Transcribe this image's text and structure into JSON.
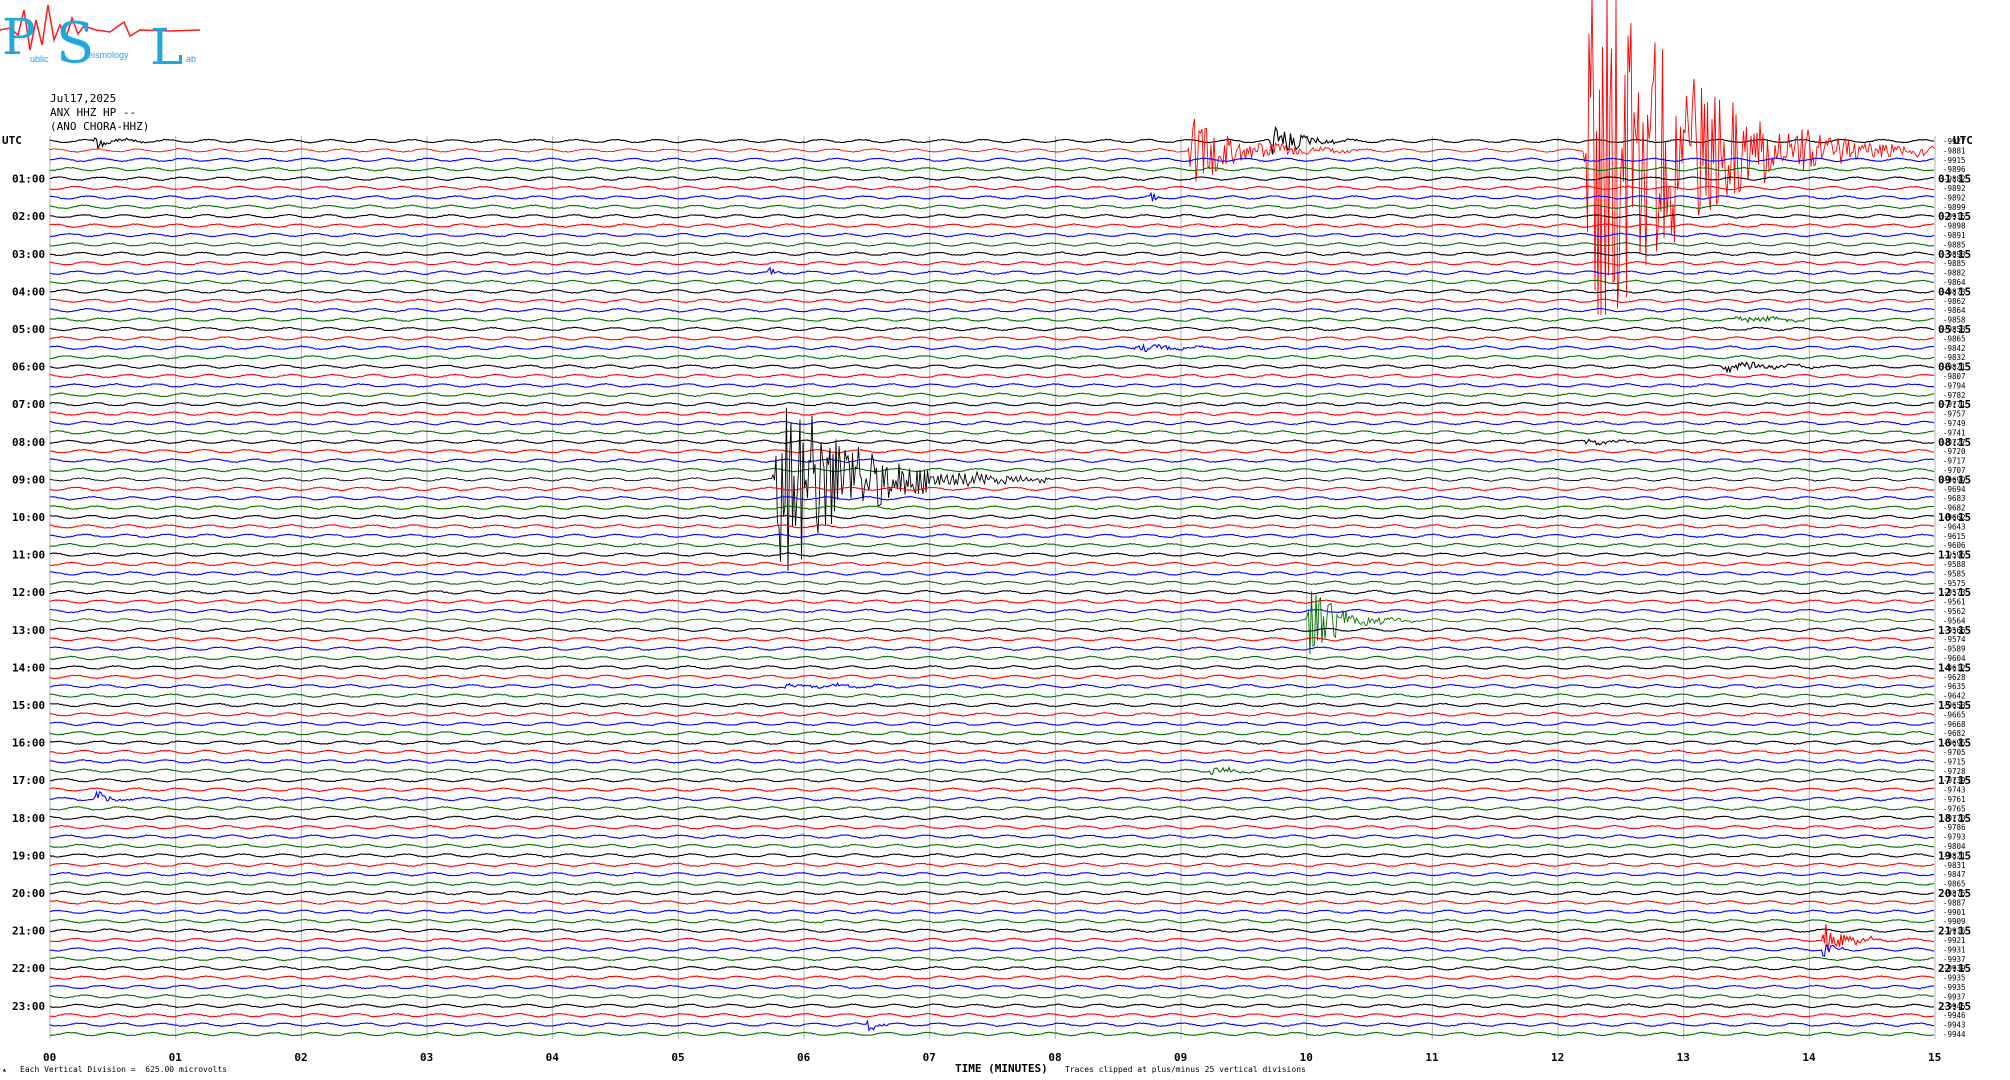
{
  "logo": {
    "letters": [
      "P",
      "S",
      "L"
    ],
    "small_words": [
      "ublic",
      "eismology",
      "ab"
    ],
    "accent": "#1ea7e0",
    "trace_color": "#ff1a1a"
  },
  "header": {
    "date": "Jul17,2025",
    "station": "ANX HHZ HP --",
    "location": "(ANO CHORA-HHZ)"
  },
  "footer": {
    "division": "Each Vertical Division =  625.00 microvolts",
    "clip_note": "Traces clipped at plus/minus 25 vertical divisions"
  },
  "chart_data": {
    "type": "line",
    "title": "",
    "xlabel": "TIME (MINUTES)",
    "x_range": [
      0,
      15
    ],
    "x_ticks": [
      "00",
      "01",
      "02",
      "03",
      "04",
      "05",
      "06",
      "07",
      "08",
      "09",
      "10",
      "11",
      "12",
      "13",
      "14",
      "15"
    ],
    "left_axis_label": "UTC",
    "right_axis_label": "UTC",
    "left_ticks": [
      "01:00",
      "02:00",
      "03:00",
      "04:00",
      "05:00",
      "06:00",
      "07:00",
      "08:00",
      "09:00",
      "10:00",
      "11:00",
      "12:00",
      "13:00",
      "14:00",
      "15:00",
      "16:00",
      "17:00",
      "18:00",
      "19:00",
      "20:00",
      "21:00",
      "22:00",
      "23:00"
    ],
    "right_ticks": [
      "01:15",
      "02:15",
      "03:15",
      "04:15",
      "05:15",
      "06:15",
      "07:15",
      "08:15",
      "09:15",
      "10:15",
      "11:15",
      "12:15",
      "13:15",
      "14:15",
      "15:15",
      "16:15",
      "17:15",
      "18:15",
      "19:15",
      "20:15",
      "21:15",
      "22:15",
      "23:15"
    ],
    "trace_colors": [
      "#000000",
      "#ff0000",
      "#0000ff",
      "#007000"
    ],
    "trace_count": 96,
    "trace_interval_minutes": 15,
    "grid": true,
    "clip_divisions": 25,
    "trace_offsets": [
      "-9927",
      "-9881",
      "-9915",
      "-9896",
      "-9882",
      "-9892",
      "-9892",
      "-9899",
      "-9915",
      "-9898",
      "-9891",
      "-9885",
      "-9893",
      "-9885",
      "-9882",
      "-9864",
      "-9873",
      "-9862",
      "-9864",
      "-9858",
      "-9853",
      "-9865",
      "-9842",
      "-9832",
      "-9821",
      "-9807",
      "-9794",
      "-9782",
      "-9771",
      "-9757",
      "-9749",
      "-9741",
      "-9727",
      "-9720",
      "-9717",
      "-9707",
      "-9699",
      "-9694",
      "-9683",
      "-9682",
      "-9662",
      "-9643",
      "-9615",
      "-9606",
      "-9595",
      "-9588",
      "-9585",
      "-9575",
      "-9573",
      "-9561",
      "-9562",
      "-9564",
      "-9566",
      "-9574",
      "-9589",
      "-9604",
      "-9612",
      "-9628",
      "-9635",
      "-9642",
      "-9653",
      "-9665",
      "-9668",
      "-9682",
      "-9695",
      "-9705",
      "-9715",
      "-9728",
      "-9739",
      "-9743",
      "-9761",
      "-9765",
      "-9770",
      "-9786",
      "-9793",
      "-9804",
      "-9821",
      "-9831",
      "-9847",
      "-9865",
      "-9875",
      "-9887",
      "-9901",
      "-9909",
      "-9916",
      "-9921",
      "-9931",
      "-9937",
      "-9939",
      "-9935",
      "-9935",
      "-9937",
      "-9945",
      "-9946",
      "-9943",
      "-9944"
    ],
    "events": [
      {
        "trace": 0,
        "start_min": 0.35,
        "dur_min": 0.6,
        "amp": 9
      },
      {
        "trace": 1,
        "start_min": 9.05,
        "dur_min": 1.5,
        "amp": 40
      },
      {
        "trace": 0,
        "start_min": 9.7,
        "dur_min": 0.9,
        "amp": 20
      },
      {
        "trace": 1,
        "start_min": 12.2,
        "dur_min": 2.8,
        "amp": 260
      },
      {
        "trace": 6,
        "start_min": 8.75,
        "dur_min": 0.2,
        "amp": 8
      },
      {
        "trace": 14,
        "start_min": 5.7,
        "dur_min": 0.3,
        "amp": 6
      },
      {
        "trace": 19,
        "start_min": 13.4,
        "dur_min": 1.1,
        "amp": 6
      },
      {
        "trace": 22,
        "start_min": 8.6,
        "dur_min": 1.2,
        "amp": 5
      },
      {
        "trace": 24,
        "start_min": 13.3,
        "dur_min": 1.4,
        "amp": 7
      },
      {
        "trace": 32,
        "start_min": 12.2,
        "dur_min": 0.8,
        "amp": 4
      },
      {
        "trace": 36,
        "start_min": 5.75,
        "dur_min": 2.2,
        "amp": 120
      },
      {
        "trace": 51,
        "start_min": 10.0,
        "dur_min": 0.9,
        "amp": 45
      },
      {
        "trace": 70,
        "start_min": 0.35,
        "dur_min": 0.5,
        "amp": 8
      },
      {
        "trace": 67,
        "start_min": 9.2,
        "dur_min": 1.3,
        "amp": 4
      },
      {
        "trace": 85,
        "start_min": 14.1,
        "dur_min": 0.7,
        "amp": 18
      },
      {
        "trace": 94,
        "start_min": 6.5,
        "dur_min": 0.3,
        "amp": 8
      },
      {
        "trace": 58,
        "start_min": 5.8,
        "dur_min": 2.2,
        "amp": 3
      },
      {
        "trace": 86,
        "start_min": 14.1,
        "dur_min": 0.3,
        "amp": 10
      }
    ]
  }
}
